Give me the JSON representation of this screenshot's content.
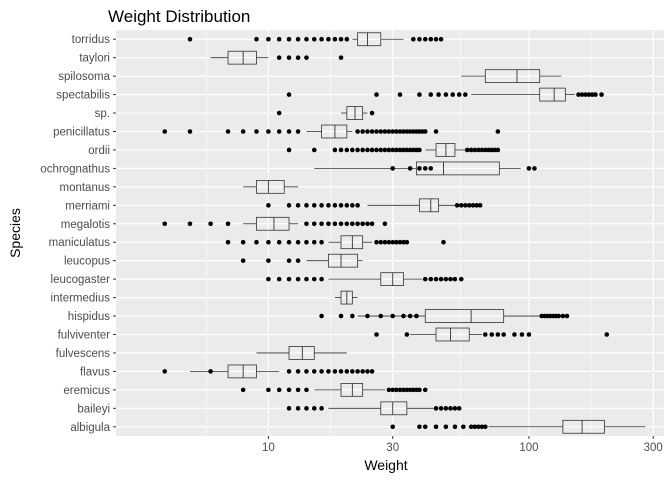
{
  "chart_data": {
    "type": "boxplot",
    "title": "Weight Distribution",
    "xlabel": "Weight",
    "ylabel": "Species",
    "x_scale": "log10",
    "xlim": [
      2.6,
      330
    ],
    "x_ticks": [
      10,
      30,
      100,
      300
    ],
    "grid": true,
    "legend": "none",
    "colors": {
      "panel": "#ebebeb",
      "grid": "#ffffff",
      "box": "#333333",
      "points": "#000000",
      "text": "#4d4d4d"
    },
    "species": [
      {
        "name": "torridus",
        "box": {
          "q1": 22,
          "median": 24,
          "q3": 27
        },
        "whisker": [
          21,
          33
        ],
        "outliers": [
          5,
          9,
          10,
          11,
          12,
          13,
          14,
          15,
          16,
          17,
          18,
          19,
          20,
          36,
          38,
          40,
          42,
          44,
          46
        ]
      },
      {
        "name": "taylori",
        "box": {
          "q1": 7,
          "median": 8,
          "q3": 9
        },
        "whisker": [
          6,
          10
        ],
        "outliers": [
          11,
          12,
          13,
          14,
          19
        ]
      },
      {
        "name": "spilosoma",
        "box": {
          "q1": 68,
          "median": 90,
          "q3": 110
        },
        "whisker": [
          55,
          133
        ],
        "outliers": []
      },
      {
        "name": "spectabilis",
        "box": {
          "q1": 110,
          "median": 125,
          "q3": 138
        },
        "whisker": [
          60,
          150
        ],
        "outliers": [
          12,
          26,
          32,
          38,
          42,
          45,
          48,
          51,
          54,
          57,
          155,
          160,
          165,
          170,
          175,
          180,
          190
        ]
      },
      {
        "name": "sp.",
        "box": {
          "q1": 20,
          "median": 21.5,
          "q3": 23
        },
        "whisker": [
          19,
          24
        ],
        "outliers": [
          11,
          25
        ]
      },
      {
        "name": "penicillatus",
        "box": {
          "q1": 16,
          "median": 18,
          "q3": 20
        },
        "whisker": [
          14,
          21
        ],
        "outliers": [
          4,
          5,
          7,
          8,
          9,
          10,
          11,
          12,
          13,
          22,
          23,
          24,
          25,
          26,
          27,
          28,
          29,
          30,
          31,
          32,
          33,
          34,
          35,
          36,
          37,
          38,
          39,
          40,
          44,
          76
        ]
      },
      {
        "name": "ordii",
        "box": {
          "q1": 44,
          "median": 48,
          "q3": 52
        },
        "whisker": [
          40,
          57
        ],
        "outliers": [
          12,
          15,
          18,
          19,
          20,
          21,
          22,
          23,
          24,
          25,
          26,
          27,
          28,
          29,
          30,
          31,
          32,
          33,
          34,
          35,
          36,
          37,
          38,
          58,
          60,
          62,
          64,
          66,
          68,
          70,
          72,
          74,
          76
        ]
      },
      {
        "name": "ochrognathus",
        "box": {
          "q1": 37,
          "median": 47,
          "q3": 77
        },
        "whisker": [
          15,
          93
        ],
        "outliers": [
          30,
          35,
          38,
          40,
          42,
          100,
          105
        ]
      },
      {
        "name": "montanus",
        "box": {
          "q1": 9,
          "median": 10,
          "q3": 11.5
        },
        "whisker": [
          8,
          13
        ],
        "outliers": []
      },
      {
        "name": "merriami",
        "box": {
          "q1": 38,
          "median": 42,
          "q3": 45
        },
        "whisker": [
          24,
          52
        ],
        "outliers": [
          10,
          12,
          13,
          14,
          15,
          16,
          17,
          18,
          19,
          20,
          21,
          22,
          53,
          55,
          57,
          59,
          61,
          63,
          65
        ]
      },
      {
        "name": "megalotis",
        "box": {
          "q1": 9,
          "median": 10.5,
          "q3": 12
        },
        "whisker": [
          8,
          13
        ],
        "outliers": [
          4,
          5,
          6,
          7,
          14,
          15,
          16,
          17,
          18,
          19,
          20,
          21,
          22,
          23,
          24,
          25,
          28
        ]
      },
      {
        "name": "maniculatus",
        "box": {
          "q1": 19,
          "median": 21,
          "q3": 23
        },
        "whisker": [
          17,
          25
        ],
        "outliers": [
          7,
          8,
          9,
          10,
          11,
          12,
          13,
          14,
          15,
          16,
          26,
          27,
          28,
          29,
          30,
          31,
          32,
          33,
          34,
          47
        ]
      },
      {
        "name": "leucopus",
        "box": {
          "q1": 17,
          "median": 19,
          "q3": 22
        },
        "whisker": [
          14,
          23
        ],
        "outliers": [
          8,
          10,
          12,
          13
        ]
      },
      {
        "name": "leucogaster",
        "box": {
          "q1": 27,
          "median": 30,
          "q3": 33
        },
        "whisker": [
          17,
          39
        ],
        "outliers": [
          10,
          11,
          12,
          13,
          14,
          15,
          16,
          40,
          42,
          44,
          46,
          48,
          50,
          52,
          55
        ]
      },
      {
        "name": "intermedius",
        "box": {
          "q1": 19,
          "median": 20,
          "q3": 21
        },
        "whisker": [
          18,
          22
        ],
        "outliers": []
      },
      {
        "name": "hispidus",
        "box": {
          "q1": 40,
          "median": 60,
          "q3": 80
        },
        "whisker": [
          22,
          110
        ],
        "outliers": [
          16,
          19,
          21,
          24,
          27,
          30,
          33,
          35,
          37,
          112,
          115,
          118,
          121,
          124,
          127,
          130,
          135,
          140
        ]
      },
      {
        "name": "fulviventer",
        "box": {
          "q1": 44,
          "median": 50,
          "q3": 59
        },
        "whisker": [
          35,
          66
        ],
        "outliers": [
          26,
          34,
          68,
          72,
          76,
          80,
          88,
          94,
          100,
          199
        ]
      },
      {
        "name": "fulvescens",
        "box": {
          "q1": 12,
          "median": 13.5,
          "q3": 15
        },
        "whisker": [
          9,
          20
        ],
        "outliers": []
      },
      {
        "name": "flavus",
        "box": {
          "q1": 7,
          "median": 8,
          "q3": 9
        },
        "whisker": [
          5,
          11
        ],
        "outliers": [
          4,
          6,
          12,
          13,
          14,
          15,
          16,
          17,
          18,
          19,
          20,
          21,
          22,
          23,
          24,
          25
        ]
      },
      {
        "name": "eremicus",
        "box": {
          "q1": 19,
          "median": 21,
          "q3": 23
        },
        "whisker": [
          15,
          28
        ],
        "outliers": [
          8,
          10,
          11,
          12,
          13,
          14,
          29,
          30,
          31,
          32,
          33,
          34,
          35,
          36,
          37,
          38,
          40
        ]
      },
      {
        "name": "baileyi",
        "box": {
          "q1": 27,
          "median": 30,
          "q3": 34
        },
        "whisker": [
          17,
          43
        ],
        "outliers": [
          12,
          13,
          14,
          15,
          16,
          44,
          46,
          48,
          50,
          52,
          54
        ]
      },
      {
        "name": "albigula",
        "box": {
          "q1": 135,
          "median": 160,
          "q3": 195
        },
        "whisker": [
          70,
          280
        ],
        "outliers": [
          30,
          38,
          40,
          44,
          48,
          52,
          56,
          60,
          62,
          64,
          66,
          68
        ]
      }
    ]
  }
}
